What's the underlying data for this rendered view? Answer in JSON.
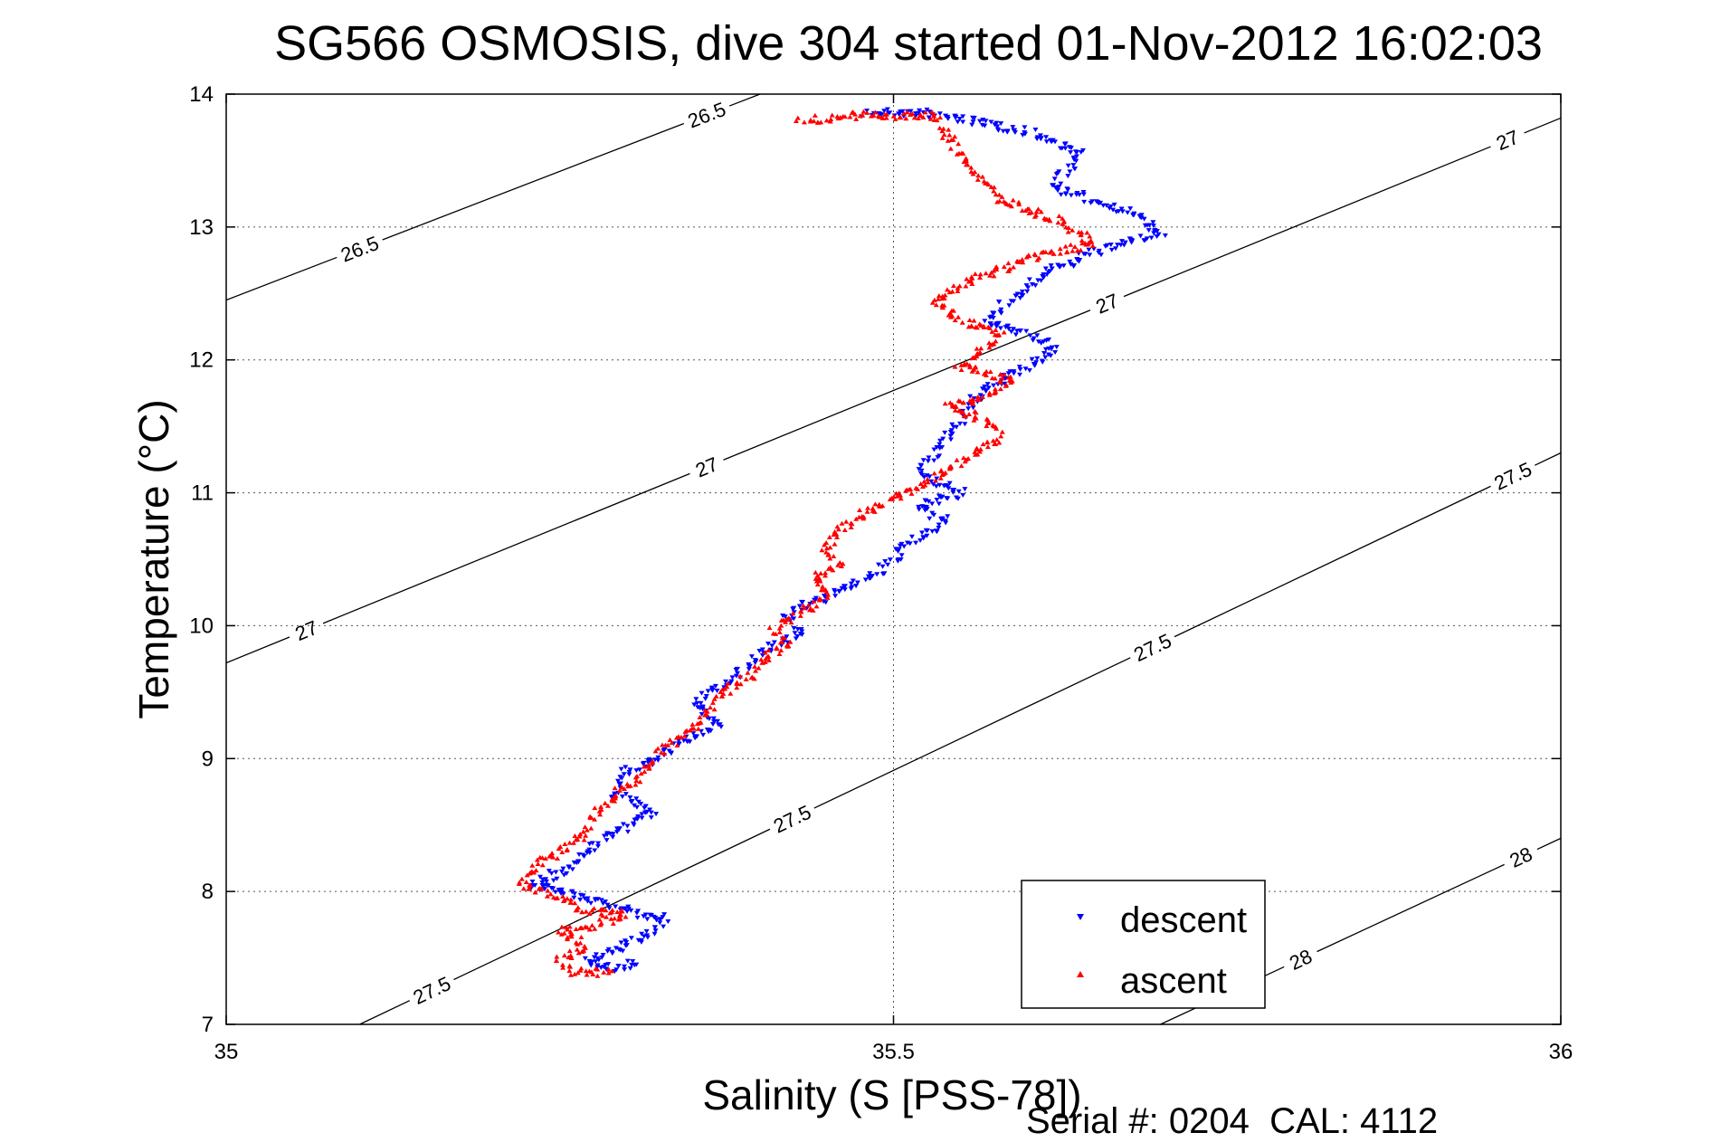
{
  "chart_data": {
    "type": "scatter",
    "title": "SG566 OSMOSIS, dive 304 started 01-Nov-2012 16:02:03",
    "xlabel": "Salinity (S [PSS-78])",
    "ylabel": "Temperature (°C)",
    "xlim": [
      35,
      36
    ],
    "ylim": [
      7,
      14
    ],
    "xticks": [
      "35",
      "35.5",
      "36"
    ],
    "yticks": [
      "7",
      "8",
      "9",
      "10",
      "11",
      "12",
      "13",
      "14"
    ],
    "grid": true,
    "footer": "Serial #: 0204  CAL: 4112",
    "legend_position": "bottom-right",
    "series": [
      {
        "name": "descent",
        "color": "#0000ff",
        "marker": "triangle-down",
        "path": [
          [
            35.48,
            13.86
          ],
          [
            35.52,
            13.86
          ],
          [
            35.56,
            13.8
          ],
          [
            35.6,
            13.72
          ],
          [
            35.64,
            13.55
          ],
          [
            35.62,
            13.3
          ],
          [
            35.68,
            13.1
          ],
          [
            35.7,
            12.95
          ],
          [
            35.66,
            12.85
          ],
          [
            35.62,
            12.68
          ],
          [
            35.6,
            12.55
          ],
          [
            35.58,
            12.4
          ],
          [
            35.57,
            12.28
          ],
          [
            35.6,
            12.2
          ],
          [
            35.62,
            12.08
          ],
          [
            35.6,
            11.95
          ],
          [
            35.58,
            11.85
          ],
          [
            35.56,
            11.7
          ],
          [
            35.55,
            11.55
          ],
          [
            35.54,
            11.42
          ],
          [
            35.53,
            11.28
          ],
          [
            35.52,
            11.15
          ],
          [
            35.55,
            11.0
          ],
          [
            35.52,
            10.9
          ],
          [
            35.54,
            10.78
          ],
          [
            35.51,
            10.62
          ],
          [
            35.5,
            10.48
          ],
          [
            35.48,
            10.35
          ],
          [
            35.45,
            10.22
          ],
          [
            35.42,
            10.1
          ],
          [
            35.43,
            9.95
          ],
          [
            35.41,
            9.85
          ],
          [
            35.39,
            9.7
          ],
          [
            35.37,
            9.55
          ],
          [
            35.35,
            9.4
          ],
          [
            35.37,
            9.25
          ],
          [
            35.34,
            9.12
          ],
          [
            35.32,
            9.0
          ],
          [
            35.3,
            8.9
          ],
          [
            35.29,
            8.75
          ],
          [
            35.32,
            8.6
          ],
          [
            35.3,
            8.5
          ],
          [
            35.28,
            8.38
          ],
          [
            35.27,
            8.28
          ],
          [
            35.25,
            8.15
          ],
          [
            35.23,
            8.05
          ],
          [
            35.26,
            7.98
          ],
          [
            35.29,
            7.9
          ],
          [
            35.31,
            7.82
          ],
          [
            35.33,
            7.8
          ],
          [
            35.31,
            7.65
          ],
          [
            35.29,
            7.55
          ],
          [
            35.27,
            7.48
          ],
          [
            35.29,
            7.42
          ],
          [
            35.31,
            7.48
          ]
        ]
      },
      {
        "name": "ascent",
        "color": "#ff0000",
        "marker": "triangle-up",
        "path": [
          [
            35.43,
            13.8
          ],
          [
            35.48,
            13.84
          ],
          [
            35.53,
            13.84
          ],
          [
            35.55,
            13.55
          ],
          [
            35.58,
            13.2
          ],
          [
            35.62,
            13.06
          ],
          [
            35.64,
            12.95
          ],
          [
            35.65,
            12.88
          ],
          [
            35.6,
            12.75
          ],
          [
            35.56,
            12.6
          ],
          [
            35.53,
            12.45
          ],
          [
            35.55,
            12.3
          ],
          [
            35.58,
            12.2
          ],
          [
            35.57,
            12.08
          ],
          [
            35.55,
            11.95
          ],
          [
            35.59,
            11.85
          ],
          [
            35.57,
            11.72
          ],
          [
            35.54,
            11.65
          ],
          [
            35.57,
            11.55
          ],
          [
            35.58,
            11.42
          ],
          [
            35.56,
            11.3
          ],
          [
            35.54,
            11.18
          ],
          [
            35.52,
            11.05
          ],
          [
            35.5,
            10.95
          ],
          [
            35.48,
            10.85
          ],
          [
            35.46,
            10.72
          ],
          [
            35.45,
            10.58
          ],
          [
            35.46,
            10.45
          ],
          [
            35.44,
            10.35
          ],
          [
            35.45,
            10.22
          ],
          [
            35.43,
            10.1
          ],
          [
            35.41,
            9.98
          ],
          [
            35.42,
            9.85
          ],
          [
            35.4,
            9.72
          ],
          [
            35.39,
            9.6
          ],
          [
            35.37,
            9.48
          ],
          [
            35.36,
            9.35
          ],
          [
            35.35,
            9.22
          ],
          [
            35.33,
            9.1
          ],
          [
            35.32,
            8.98
          ],
          [
            35.31,
            8.85
          ],
          [
            35.29,
            8.72
          ],
          [
            35.28,
            8.6
          ],
          [
            35.27,
            8.48
          ],
          [
            35.26,
            8.36
          ],
          [
            35.24,
            8.25
          ],
          [
            35.23,
            8.15
          ],
          [
            35.22,
            8.05
          ],
          [
            35.25,
            7.95
          ],
          [
            35.27,
            7.85
          ],
          [
            35.3,
            7.82
          ],
          [
            35.28,
            7.75
          ],
          [
            35.25,
            7.7
          ],
          [
            35.27,
            7.58
          ],
          [
            35.25,
            7.48
          ],
          [
            35.26,
            7.4
          ],
          [
            35.29,
            7.38
          ]
        ]
      }
    ],
    "isopycnals": [
      {
        "label": "26.5",
        "p1": [
          35.0,
          12.45
        ],
        "p2": [
          35.4,
          14.0
        ]
      },
      {
        "label": "27",
        "p1": [
          35.0,
          9.72
        ],
        "p2": [
          36.0,
          13.82
        ]
      },
      {
        "label": "27.5",
        "p1": [
          35.1,
          7.0
        ],
        "p2": [
          36.0,
          11.3
        ]
      },
      {
        "label": "28",
        "p1": [
          35.7,
          7.0
        ],
        "p2": [
          36.0,
          8.4
        ]
      }
    ]
  }
}
